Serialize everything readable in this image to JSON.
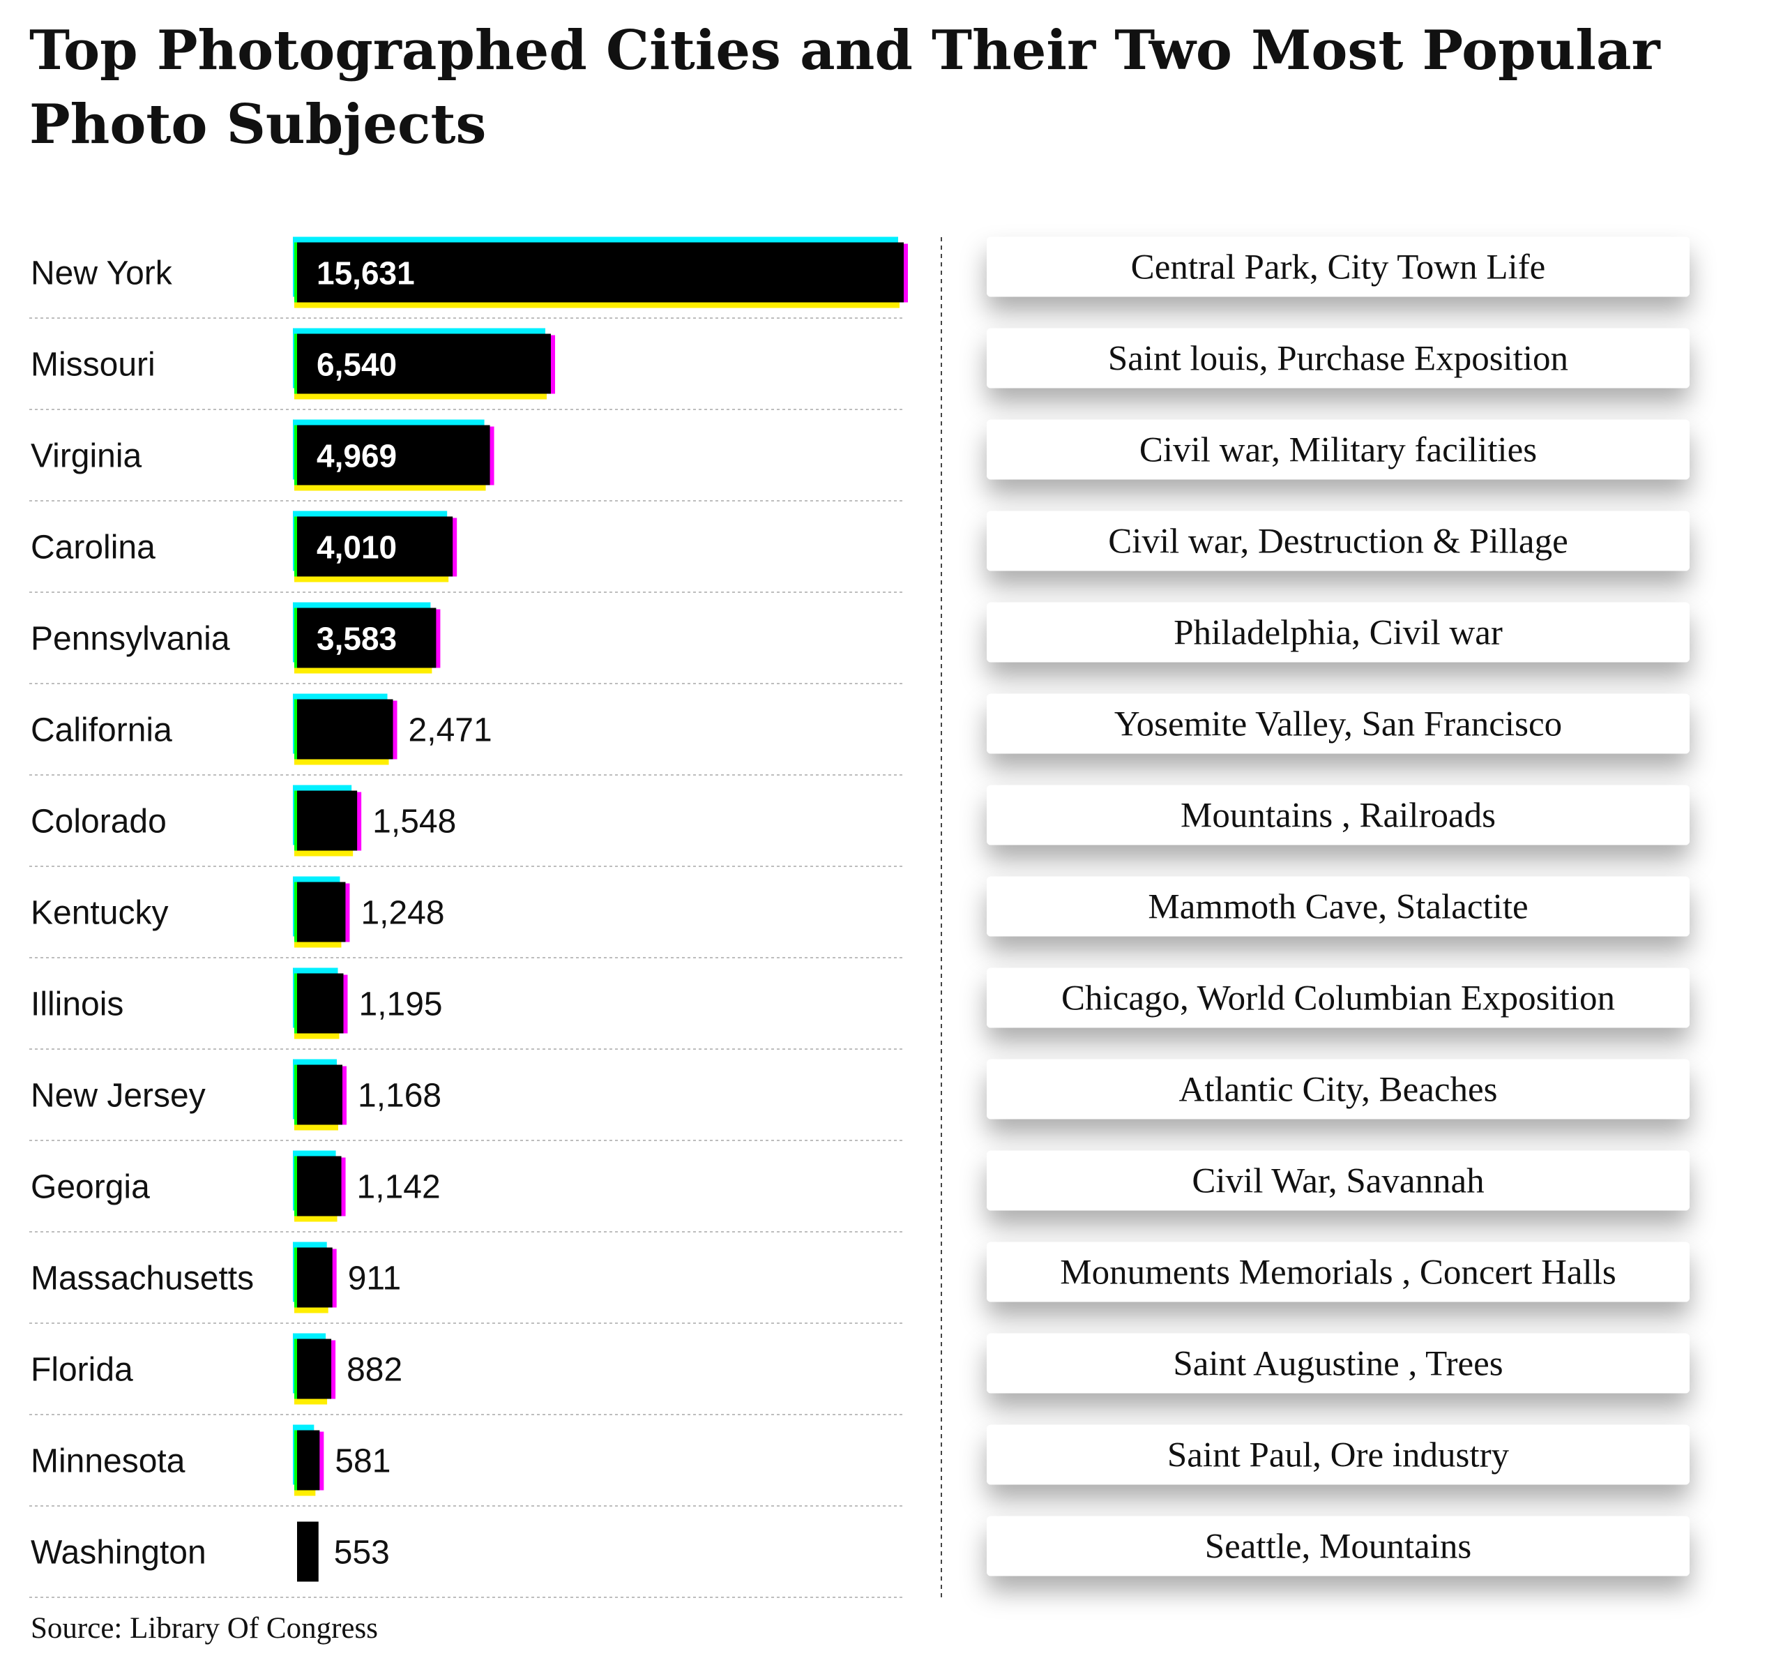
{
  "title": "Top Photographed Cities and Their Two Most Popular Photo Subjects",
  "source": "Source: Library Of Congress",
  "colors": {
    "bar": "#000000",
    "glitch_cyan": "#00f0ff",
    "glitch_yellow": "#ffee00",
    "glitch_green": "#00ff00",
    "glitch_magenta": "#ff00ff",
    "row_divider": "#bdbdbd",
    "column_divider": "#444444",
    "card_bg": "#ffffff"
  },
  "chart_data": {
    "type": "bar",
    "orientation": "horizontal",
    "title": "Top Photographed Cities and Their Two Most Popular Photo Subjects",
    "categories": [
      "New York",
      "Missouri",
      "Virginia",
      "Carolina",
      "Pennsylvania",
      "California",
      "Colorado",
      "Kentucky",
      "Illinois",
      "New Jersey",
      "Georgia",
      "Massachusetts",
      "Florida",
      "Minnesota",
      "Washington"
    ],
    "values": [
      15631,
      6540,
      4969,
      4010,
      3583,
      2471,
      1548,
      1248,
      1195,
      1168,
      1142,
      911,
      882,
      581,
      553
    ],
    "value_labels": [
      "15,631",
      "6,540",
      "4,969",
      "4,010",
      "3,583",
      "2,471",
      "1,548",
      "1,248",
      "1,195",
      "1,168",
      "1,142",
      "911",
      "882",
      "581",
      "553"
    ],
    "subjects": [
      "Central Park, City Town Life",
      "Saint louis,  Purchase Exposition",
      "Civil war, Military facilities",
      "Civil war,  Destruction & Pillage",
      "Philadelphia, Civil war",
      "Yosemite Valley, San Francisco",
      "Mountains , Railroads",
      "Mammoth Cave, Stalactite",
      "Chicago, World Columbian Exposition",
      "Atlantic City, Beaches",
      "Civil War, Savannah",
      "Monuments  Memorials , Concert Halls",
      "Saint Augustine , Trees",
      "Saint Paul, Ore industry",
      "Seattle, Mountains"
    ],
    "xlim": [
      0,
      15631
    ],
    "grid": false,
    "xlabel": "",
    "ylabel": ""
  }
}
